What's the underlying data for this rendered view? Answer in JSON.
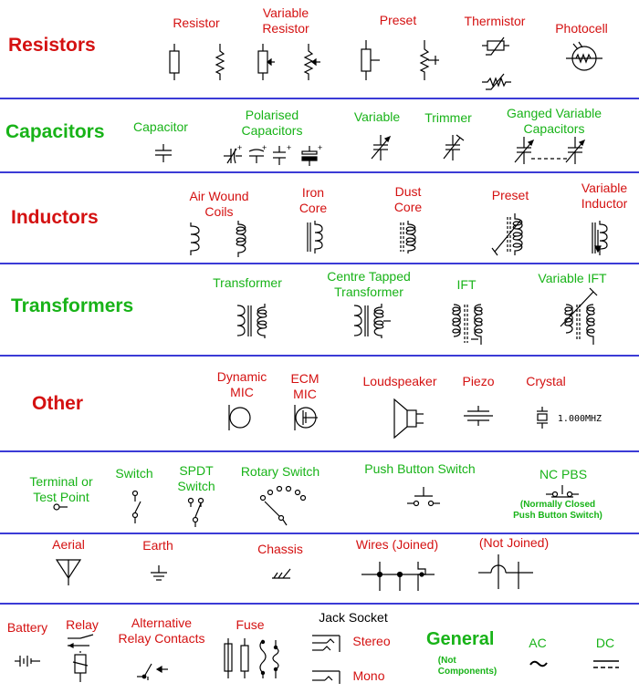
{
  "colors": {
    "heading_red": "#d41111",
    "heading_green": "#18b318",
    "divider": "#3b3bd6"
  },
  "resistors": {
    "heading": "Resistors",
    "resistor": "Resistor",
    "variable_resistor": "Variable\nResistor",
    "preset": "Preset",
    "thermistor": "Thermistor",
    "photocell": "Photocell"
  },
  "capacitors": {
    "heading": "Capacitors",
    "capacitor": "Capacitor",
    "polarised": "Polarised\nCapacitors",
    "variable": "Variable",
    "trimmer": "Trimmer",
    "ganged": "Ganged Variable\nCapacitors"
  },
  "inductors": {
    "heading": "Inductors",
    "air_wound": "Air Wound\nCoils",
    "iron_core": "Iron\nCore",
    "dust_core": "Dust\nCore",
    "preset": "Preset",
    "variable_inductor": "Variable\nInductor"
  },
  "transformers": {
    "heading": "Transformers",
    "transformer": "Transformer",
    "centre_tapped": "Centre Tapped\nTransformer",
    "ift": "IFT",
    "variable_ift": "Variable IFT"
  },
  "other": {
    "heading": "Other",
    "dynamic_mic": "Dynamic\nMIC",
    "ecm_mic": "ECM\nMIC",
    "loudspeaker": "Loudspeaker",
    "piezo": "Piezo",
    "crystal": "Crystal",
    "crystal_value": "1.000MHZ"
  },
  "switches": {
    "terminal": "Terminal or\nTest Point",
    "switch": "Switch",
    "spdt": "SPDT\nSwitch",
    "rotary": "Rotary Switch",
    "push_button": "Push Button Switch",
    "nc_pbs": "NC PBS",
    "nc_pbs_note": "(Normally Closed\nPush Button Switch)"
  },
  "grounds": {
    "aerial": "Aerial",
    "earth": "Earth",
    "chassis": "Chassis",
    "wires_joined": "Wires (Joined)",
    "not_joined": "(Not Joined)"
  },
  "bottom": {
    "battery": "Battery",
    "relay": "Relay",
    "alt_relay": "Alternative\nRelay Contacts",
    "fuse": "Fuse",
    "jack_socket": "Jack Socket",
    "stereo": "Stereo",
    "mono": "Mono",
    "general": "General",
    "not_components": "(Not\nComponents)",
    "ac": "AC",
    "dc": "DC"
  }
}
